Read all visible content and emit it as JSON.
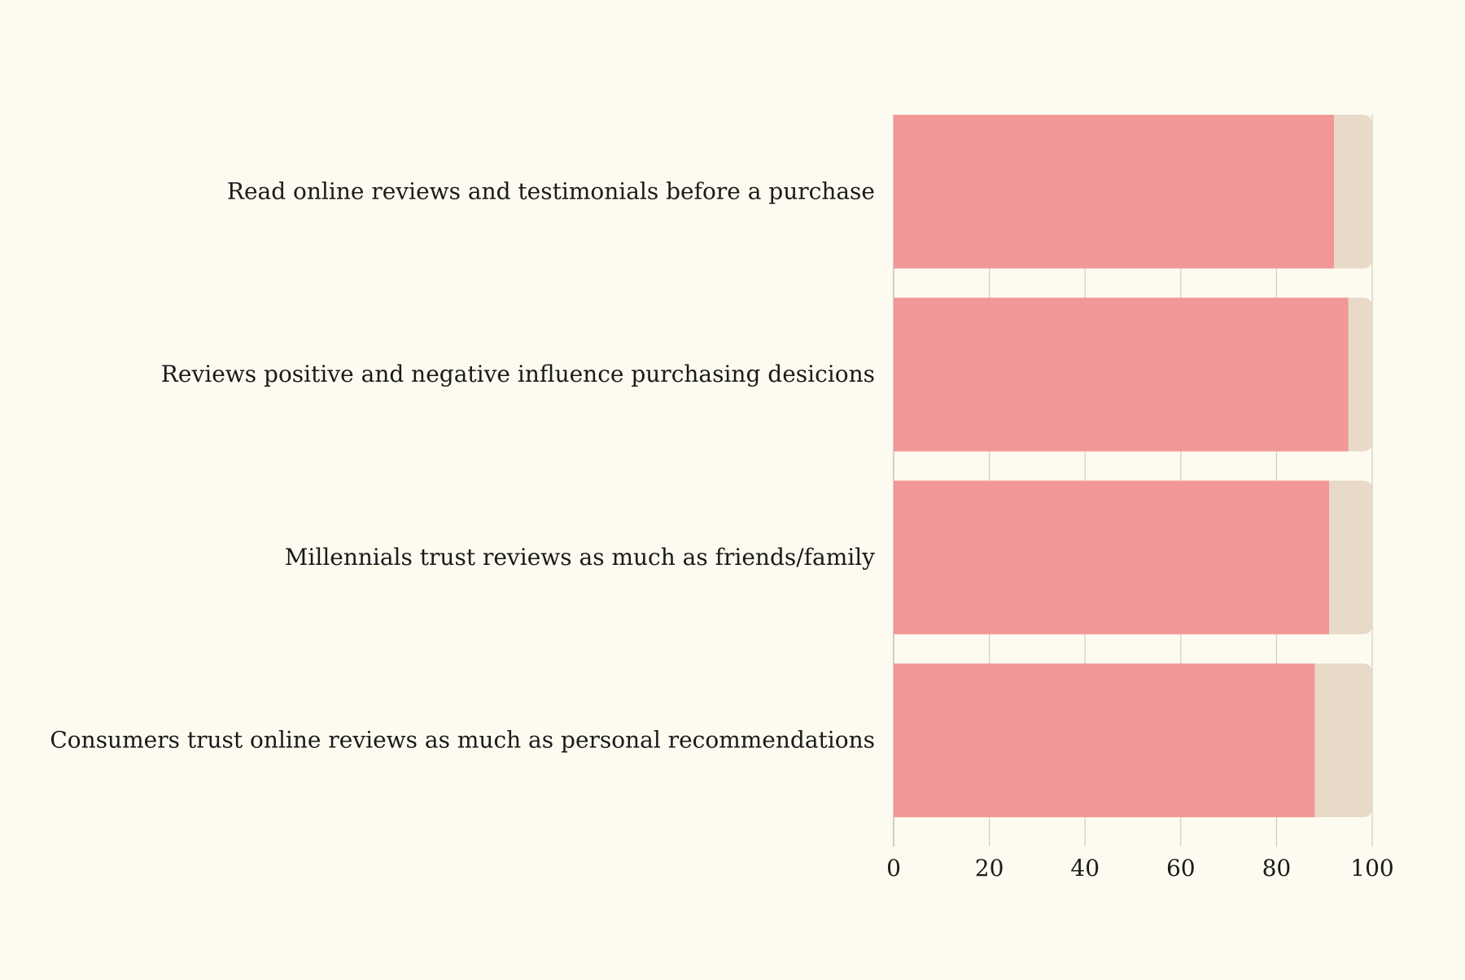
{
  "chart_data": {
    "type": "bar",
    "orientation": "horizontal",
    "categories": [
      "Read online reviews and testimonials before a purchase",
      "Reviews positive and negative influence purchasing desicions",
      "Millennials trust reviews as much as friends/family",
      "Consumers trust online reviews as much as personal recommendations"
    ],
    "values": [
      92,
      95,
      91,
      88
    ],
    "background_values": [
      100,
      100,
      100,
      100
    ],
    "xlim": [
      0,
      100
    ],
    "x_ticks": [
      "0",
      "20",
      "40",
      "60",
      "80",
      "100"
    ],
    "title": "",
    "xlabel": "",
    "ylabel": "",
    "grid": "vertical",
    "legend": "none",
    "colors": {
      "bar": "#f29797",
      "bar_background": "#e8d9c8",
      "grid": "#cfcfc0",
      "page_background": "#fdfbef"
    }
  }
}
